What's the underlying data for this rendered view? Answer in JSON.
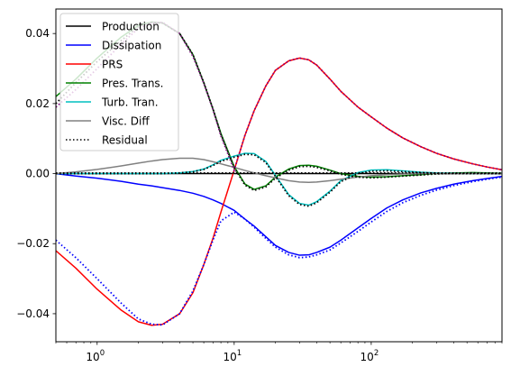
{
  "chart_data": {
    "type": "line",
    "title": "",
    "xlabel": "",
    "ylabel": "",
    "xscale": "log",
    "xlim": [
      0.5,
      900
    ],
    "ylim": [
      -0.048,
      0.047
    ],
    "grid": false,
    "legend": {
      "placement": "top-left",
      "entries": [
        "Production",
        "Dissipation",
        "PRS",
        "Pres. Trans.",
        "Turb. Tran.",
        "Visc. Diff",
        "Residual"
      ]
    },
    "x_ticks": [
      {
        "value": 1,
        "base": "10",
        "exp": "0"
      },
      {
        "value": 10,
        "base": "10",
        "exp": "1"
      },
      {
        "value": 100,
        "base": "10",
        "exp": "2"
      }
    ],
    "y_ticks": [
      {
        "value": 0.04,
        "label": "0.04"
      },
      {
        "value": 0.02,
        "label": "0.02"
      },
      {
        "value": 0.0,
        "label": "0.00"
      },
      {
        "value": -0.02,
        "label": "−0.02"
      },
      {
        "value": -0.04,
        "label": "−0.04"
      }
    ],
    "x": [
      0.5,
      0.7,
      1,
      1.5,
      2,
      2.5,
      3,
      4,
      5,
      6,
      7,
      8,
      10,
      12,
      14,
      17,
      20,
      25,
      30,
      35,
      40,
      50,
      60,
      80,
      100,
      130,
      170,
      230,
      300,
      400,
      550,
      700,
      900
    ],
    "series": [
      {
        "name": "Production",
        "color": "#000000",
        "dash": "solid",
        "values": [
          0,
          0,
          0,
          0,
          0,
          0,
          0,
          0,
          0,
          0,
          0,
          0,
          0,
          0,
          0,
          0,
          0,
          0,
          0,
          0,
          0,
          0,
          0,
          0,
          0,
          0,
          0,
          0,
          0,
          0,
          0,
          0,
          0
        ]
      },
      {
        "name": "Dissipation",
        "color": "#0000ff",
        "dash": "solid",
        "values": [
          0,
          -0.0007,
          -0.0013,
          -0.0022,
          -0.003,
          -0.0035,
          -0.004,
          -0.0048,
          -0.0056,
          -0.0065,
          -0.0075,
          -0.0085,
          -0.0105,
          -0.013,
          -0.015,
          -0.018,
          -0.0205,
          -0.0225,
          -0.0233,
          -0.0232,
          -0.0225,
          -0.021,
          -0.019,
          -0.0155,
          -0.0128,
          -0.0098,
          -0.0075,
          -0.0055,
          -0.0042,
          -0.003,
          -0.002,
          -0.0014,
          -0.0008
        ]
      },
      {
        "name": "PRS",
        "color": "#ff0000",
        "dash": "solid",
        "values": [
          -0.022,
          -0.027,
          -0.033,
          -0.039,
          -0.0423,
          -0.0433,
          -0.043,
          -0.04,
          -0.034,
          -0.026,
          -0.0185,
          -0.011,
          0.001,
          0.011,
          0.018,
          0.025,
          0.0295,
          0.0322,
          0.033,
          0.0325,
          0.031,
          0.027,
          0.0235,
          0.019,
          0.0162,
          0.013,
          0.0102,
          0.0077,
          0.0058,
          0.0042,
          0.0028,
          0.0019,
          0.0011
        ]
      },
      {
        "name": "Pres. Trans.",
        "color": "#008000",
        "dash": "solid",
        "values": [
          0.022,
          0.027,
          0.033,
          0.039,
          0.0423,
          0.0433,
          0.043,
          0.04,
          0.034,
          0.026,
          0.0185,
          0.0115,
          0.002,
          -0.003,
          -0.0045,
          -0.0035,
          -0.001,
          0.0013,
          0.0023,
          0.0024,
          0.0021,
          0.001,
          0,
          -0.0008,
          -0.001,
          -0.0009,
          -0.0006,
          -0.0003,
          0,
          0.0002,
          0.0003,
          0.0002,
          0.0001
        ]
      },
      {
        "name": "Turb. Tran.",
        "color": "#00bfbf",
        "dash": "solid",
        "values": [
          0,
          0,
          0,
          0,
          0,
          0,
          0,
          0.0002,
          0.0006,
          0.0013,
          0.0025,
          0.0038,
          0.005,
          0.0058,
          0.0057,
          0.0035,
          -0.0005,
          -0.006,
          -0.0085,
          -0.009,
          -0.008,
          -0.005,
          -0.002,
          0.0003,
          0.001,
          0.0011,
          0.0008,
          0.0004,
          0.0002,
          0.0001,
          0,
          0,
          0
        ]
      },
      {
        "name": "Visc. Diff",
        "color": "#808080",
        "dash": "solid",
        "values": [
          0,
          0.0005,
          0.0012,
          0.0022,
          0.003,
          0.0036,
          0.004,
          0.0044,
          0.0044,
          0.004,
          0.0034,
          0.0028,
          0.0018,
          0.0009,
          0.0002,
          -0.0006,
          -0.0012,
          -0.002,
          -0.0024,
          -0.0025,
          -0.0024,
          -0.002,
          -0.0016,
          -0.001,
          -0.0006,
          -0.0003,
          -0.0001,
          0,
          0,
          0,
          0,
          0,
          0
        ]
      },
      {
        "name": "Residual",
        "color": "#000000",
        "dash": "dotted",
        "values": [
          0.0002,
          0.0002,
          0.0002,
          0.0002,
          0.0002,
          0.0002,
          0.0002,
          0.0002,
          0.0002,
          0.0002,
          0.0002,
          0.0002,
          0.0002,
          0.0002,
          0.0002,
          0.0002,
          0.0002,
          0.0002,
          0.0002,
          0.0002,
          0.0002,
          0.0002,
          0.0002,
          0.0002,
          0.0002,
          0.0002,
          0.0002,
          0.0002,
          0.0002,
          0.0002,
          0.0002,
          0.0002,
          0.0002
        ]
      }
    ],
    "dotted_overlays": [
      {
        "of": "Dissipation",
        "color": "#0000ff",
        "values": [
          -0.019,
          -0.024,
          -0.03,
          -0.037,
          -0.0415,
          -0.043,
          -0.0432,
          -0.04,
          -0.0335,
          -0.026,
          -0.019,
          -0.0135,
          -0.011,
          -0.013,
          -0.0153,
          -0.0185,
          -0.021,
          -0.0232,
          -0.024,
          -0.0238,
          -0.0232,
          -0.0218,
          -0.0198,
          -0.0165,
          -0.0138,
          -0.0108,
          -0.0083,
          -0.0062,
          -0.0047,
          -0.0034,
          -0.0023,
          -0.0016,
          -0.001
        ]
      },
      {
        "of": "PRS",
        "color": "#800080",
        "values": [
          0.019,
          0.024,
          0.03,
          0.037,
          0.0415,
          0.043,
          0.0432,
          0.04,
          0.0335,
          0.0258,
          0.0183,
          0.0108,
          0.001,
          0.011,
          0.018,
          0.025,
          0.0295,
          0.0322,
          0.033,
          0.0325,
          0.031,
          0.027,
          0.0235,
          0.019,
          0.0162,
          0.013,
          0.0102,
          0.0077,
          0.0058,
          0.0042,
          0.0028,
          0.0019,
          0.0011
        ]
      },
      {
        "of": "Pres. Trans.",
        "color": "#000000",
        "values": [
          0.02,
          0.026,
          0.032,
          0.038,
          0.042,
          0.0432,
          0.043,
          0.04,
          0.034,
          0.026,
          0.0185,
          0.0112,
          0.0017,
          -0.0033,
          -0.0048,
          -0.0038,
          -0.0013,
          0.001,
          0.002,
          0.0021,
          0.0018,
          0.0008,
          -0.0002,
          -0.001,
          -0.0012,
          -0.001,
          -0.0007,
          -0.0004,
          -0.0001,
          0.0001,
          0.0002,
          0.0001,
          0
        ]
      },
      {
        "of": "Turb. Tran.",
        "color": "#000000",
        "values": [
          0,
          0,
          0,
          0,
          0,
          0,
          0,
          0.0002,
          0.0005,
          0.0012,
          0.0023,
          0.0035,
          0.0047,
          0.0055,
          0.0054,
          0.0032,
          -0.0008,
          -0.0063,
          -0.0088,
          -0.0093,
          -0.0083,
          -0.0053,
          -0.0023,
          0,
          0.0007,
          0.0008,
          0.0006,
          0.0003,
          0.0001,
          0,
          0,
          0,
          0
        ]
      }
    ]
  }
}
